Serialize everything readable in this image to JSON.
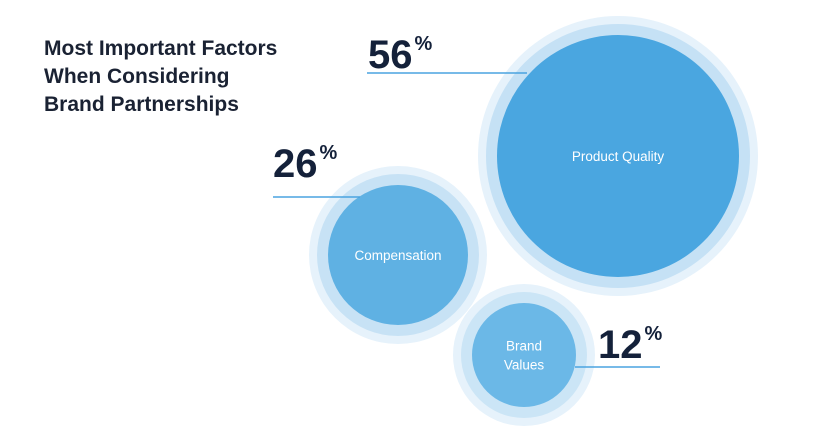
{
  "chart_data": {
    "type": "bubble",
    "title": [
      "Most Important Factors",
      "When Considering",
      "Brand Partnerships"
    ],
    "unit": "%",
    "colors": {
      "title": "#1a2233",
      "value": "#14213a",
      "leader": "#4aa3e0",
      "halo": "#e6f2fb"
    },
    "bubbles": [
      {
        "label": [
          "Product Quality"
        ],
        "value": "56",
        "fill": "#4aa6e0",
        "ring": "#c5e1f5"
      },
      {
        "label": [
          "Compensation"
        ],
        "value": "26",
        "fill": "#5fb1e3",
        "ring": "#c7e2f5"
      },
      {
        "label": [
          "Brand",
          "Values"
        ],
        "value": "12",
        "fill": "#6bb8e7",
        "ring": "#cbe5f6"
      }
    ]
  }
}
